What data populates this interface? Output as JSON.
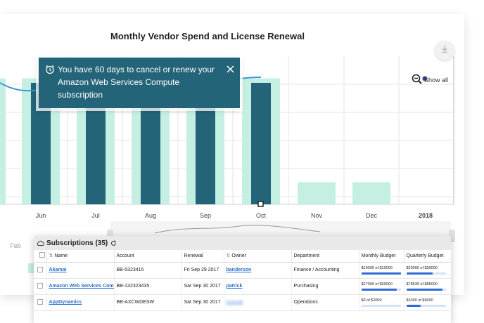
{
  "chart": {
    "title": "Monthly Vendor Spend and License Renewal",
    "show_all_label": "Show all",
    "tooltip_text": "You have 60 days to cancel or renew your Amazon Web Services Compute subscription",
    "colors": {
      "dark_bar": "#236478",
      "light_bar": "#c6efe4",
      "line": "#3a9bd6",
      "grid": "#e4e4e4"
    }
  },
  "chart_data": {
    "type": "bar",
    "x_tick_labels": [
      "Jun",
      "Jul",
      "Aug",
      "Sep",
      "Oct",
      "Nov",
      "Dec",
      "2018"
    ],
    "navigator_labels": [
      "Feb"
    ],
    "series": [
      {
        "values": [
          85,
          94,
          94,
          94,
          85,
          15,
          15
        ]
      },
      {
        "values": [
          82,
          88,
          88,
          88,
          82,
          0,
          0
        ]
      }
    ]
  },
  "subscriptions": {
    "title": "Subscriptions (35)",
    "columns": [
      "Name",
      "Account",
      "Renewal",
      "Owner",
      "Department",
      "Monthly Budget",
      "Quarterly Budget"
    ],
    "rows": [
      {
        "name": "Akamai",
        "account": "BB-5323415",
        "renewal": "Fri Sep 29 2017",
        "owner": "banderson",
        "owner_blurred": false,
        "department": "Finance / Accounting",
        "monthly": "$10000 of $10000",
        "monthly_pct": 1.0,
        "quarterly": "$20000 of $30000",
        "quarterly_pct": 0.67
      },
      {
        "name": "Amazon Web Services Compu",
        "account": "BB-132323435",
        "renewal": "Sat Sep 30 2017",
        "owner": "patrick",
        "owner_blurred": false,
        "department": "Purchasing",
        "monthly": "$27000 of $30000",
        "monthly_pct": 0.9,
        "quarterly": "$78539 of $85000",
        "quarterly_pct": 0.92
      },
      {
        "name": "AppDynamics",
        "account": "BB-AXCWDESW",
        "renewal": "Sat Sep 30 2017",
        "owner": "mnicole",
        "owner_blurred": true,
        "department": "Operations",
        "monthly": "$0 of $2000",
        "monthly_pct": 0.0,
        "quarterly": "$3300 of $9000",
        "quarterly_pct": 0.37
      }
    ]
  }
}
